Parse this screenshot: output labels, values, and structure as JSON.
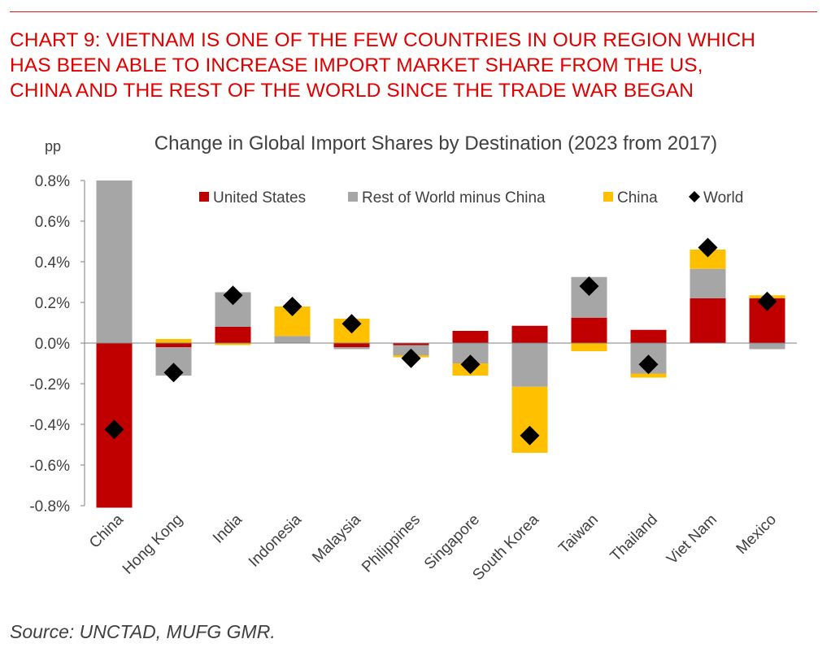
{
  "header": {
    "title_lines": [
      "CHART 9: VIETNAM IS ONE OF THE FEW COUNTRIES IN OUR REGION WHICH",
      "HAS BEEN ABLE TO INCREASE IMPORT MARKET SHARE FROM THE US,",
      "CHINA AND THE REST OF THE WORLD SINCE THE TRADE WAR BEGAN"
    ]
  },
  "source": "Source: UNCTAD, MUFG GMR.",
  "colors": {
    "accent": "#e00000",
    "us": "#c00000",
    "row": "#a6a6a6",
    "china": "#ffc000",
    "world": "#000000"
  },
  "chart_data": {
    "type": "bar",
    "stacked": true,
    "title": "Change in Global Import Shares by Destination (2023 from 2017)",
    "ylabel": "pp",
    "ylim": [
      -0.8,
      0.8
    ],
    "yticks": [
      "0.8%",
      "0.6%",
      "0.4%",
      "0.2%",
      "0.0%",
      "-0.2%",
      "-0.4%",
      "-0.6%",
      "-0.8%"
    ],
    "ytick_values": [
      0.8,
      0.6,
      0.4,
      0.2,
      0.0,
      -0.2,
      -0.4,
      -0.6,
      -0.8
    ],
    "legend_position": "top-right",
    "categories": [
      "China",
      "Hong Kong",
      "India",
      "Indonesia",
      "Malaysia",
      "Philippines",
      "Singapore",
      "South Korea",
      "Taiwan",
      "Thailand",
      "Viet Nam",
      "Mexico"
    ],
    "series": [
      {
        "name": "United States",
        "values": [
          -0.81,
          -0.02,
          0.08,
          0.0,
          -0.02,
          -0.01,
          0.06,
          0.085,
          0.125,
          0.065,
          0.22,
          0.22
        ]
      },
      {
        "name": "Rest of World minus China",
        "values": [
          0.8,
          -0.14,
          0.17,
          0.035,
          -0.01,
          -0.05,
          -0.1,
          -0.215,
          0.2,
          -0.15,
          0.145,
          -0.03
        ]
      },
      {
        "name": "China",
        "values": [
          0.0,
          0.02,
          -0.01,
          0.145,
          0.12,
          -0.01,
          -0.06,
          -0.325,
          -0.04,
          -0.02,
          0.095,
          0.015
        ]
      },
      {
        "name": "World",
        "type": "marker",
        "values": [
          -0.425,
          -0.145,
          0.235,
          0.18,
          0.095,
          -0.075,
          -0.105,
          -0.455,
          0.28,
          -0.105,
          0.47,
          0.205
        ]
      }
    ]
  }
}
